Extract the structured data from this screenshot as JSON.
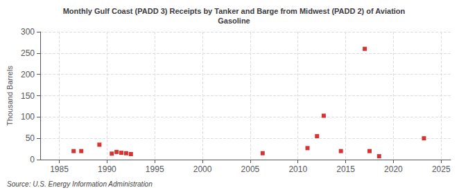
{
  "chart_data": {
    "type": "scatter",
    "title": "Monthly Gulf Coast (PADD 3) Receipts by Tanker and Barge from Midwest (PADD 2) of Aviation\nGasoline",
    "ylabel": "Thousand Barrels",
    "annotations": [
      "Source: U.S. Energy Information Administration"
    ],
    "x": [
      1986.5,
      1987.3,
      1989.2,
      1990.5,
      1991.0,
      1991.5,
      1992.0,
      1992.5,
      2006.3,
      2011.0,
      2012.0,
      2012.7,
      2014.5,
      2017.0,
      2017.5,
      2018.5,
      2023.2
    ],
    "values": [
      20,
      20,
      35,
      14,
      18,
      16,
      15,
      13,
      15,
      27,
      55,
      103,
      20,
      260,
      20,
      8,
      50
    ],
    "color": "#cc0000",
    "marker": "square",
    "xlim": [
      1983,
      2026
    ],
    "xticks": [
      1985,
      1990,
      1995,
      2000,
      2005,
      2010,
      2015,
      2020,
      2025
    ],
    "ylim": [
      0,
      300
    ],
    "yticks": [
      0,
      50,
      100,
      150,
      200,
      250,
      300
    ],
    "grid": true
  }
}
